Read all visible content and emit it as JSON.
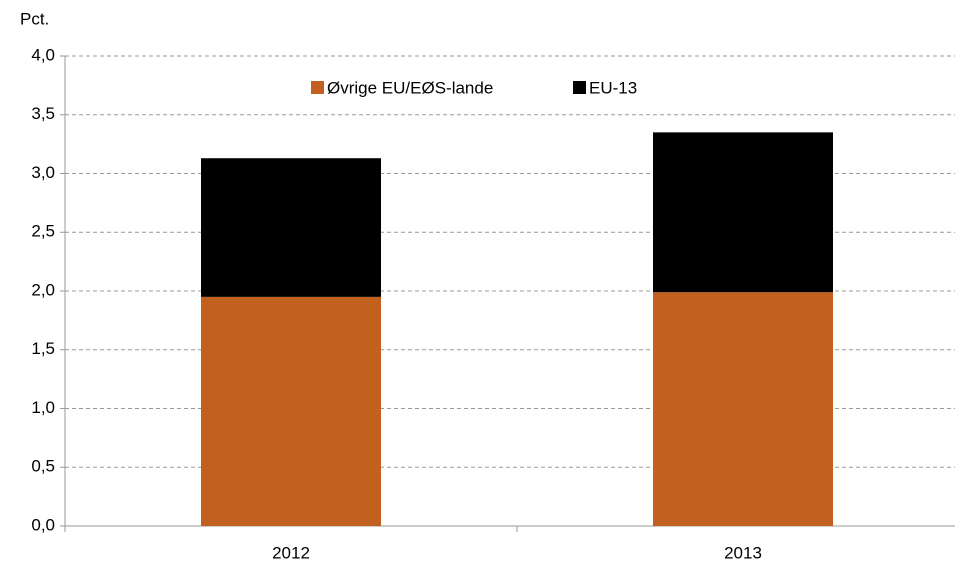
{
  "chart_data": {
    "type": "stacked_bar",
    "y_label": "Pct.",
    "categories": [
      "2012",
      "2013"
    ],
    "series": [
      {
        "name": "Øvrige EU/EØS-lande",
        "color": "#c2601f",
        "values": [
          1.95,
          1.99
        ]
      },
      {
        "name": "EU-13",
        "color": "#000000",
        "values": [
          1.18,
          1.36
        ]
      }
    ],
    "ylim": [
      0,
      4
    ],
    "yticks": [
      {
        "value": 0,
        "label": "0,0"
      },
      {
        "value": 0.5,
        "label": "0,5"
      },
      {
        "value": 1,
        "label": "1,0"
      },
      {
        "value": 1.5,
        "label": "1,5"
      },
      {
        "value": 2,
        "label": "2,0"
      },
      {
        "value": 2.5,
        "label": "2,5"
      },
      {
        "value": 3,
        "label": "3,0"
      },
      {
        "value": 3.5,
        "label": "3,5"
      },
      {
        "value": 4,
        "label": "4,0"
      }
    ],
    "grid": true,
    "legend": "top"
  }
}
